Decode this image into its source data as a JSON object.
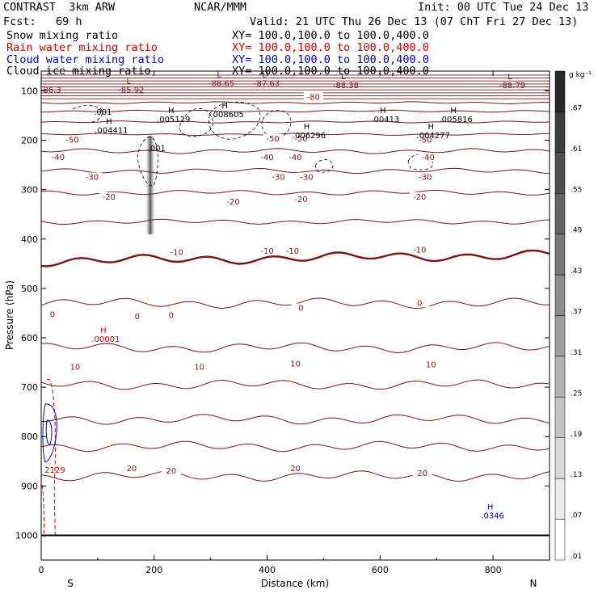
{
  "header": {
    "model": "CONTRAST  3km ARW",
    "org": "NCAR/MMM",
    "init": "Init: 00 UTC Tue 24 Dec 13",
    "fcst": "Fcst:   69 h",
    "valid": "Valid: 21 UTC Thu 26 Dec 13 (07 ChT Fri 27 Dec 13)"
  },
  "legend": [
    {
      "field": "Snow mixing ratio",
      "xy": "XY= 100.0,100.0 to 100.0,400.0",
      "color": "#000000"
    },
    {
      "field": "Rain water mixing ratio",
      "xy": "XY= 100.0,100.0 to 100.0,400.0",
      "color": "#d40000"
    },
    {
      "field": "Cloud water mixing ratio",
      "xy": "XY= 100.0,100.0 to 100.0,400.0",
      "color": "#0000c8"
    },
    {
      "field": "Cloud ice mixing ratio",
      "xy": "XY= 100.0,100.0 to 100.0,400.0",
      "color": "#000000"
    }
  ],
  "colors": {
    "isotherm": "#7a1414",
    "rain": "#d40000",
    "cloud": "#0000c8",
    "snow": "#000000"
  },
  "chart_data": {
    "type": "cross-section",
    "xlabel": "Distance (km)",
    "ylabel": "Pressure (hPa)",
    "xlim": [
      0,
      900
    ],
    "ylim": [
      1050,
      60
    ],
    "x_ticks": [
      0,
      200,
      400,
      600,
      800
    ],
    "y_ticks": [
      100,
      200,
      300,
      400,
      500,
      600,
      700,
      800,
      900,
      1000
    ],
    "end_left": "S",
    "end_right": "N",
    "colorbar": {
      "unit": "g kg⁻¹",
      "labels": [
        ".67",
        ".61",
        ".55",
        ".49",
        ".43",
        ".37",
        ".31",
        ".25",
        ".19",
        ".13",
        ".07",
        ".01"
      ]
    },
    "isotherms": [
      {
        "t": -80,
        "p": 124
      },
      {
        "t": -70,
        "p": 141
      },
      {
        "t": -60,
        "p": 163
      },
      {
        "t": -50,
        "p": 188
      },
      {
        "t": -40,
        "p": 222
      },
      {
        "t": -30,
        "p": 262
      },
      {
        "t": -20,
        "p": 306
      },
      {
        "t": -10,
        "p": 365
      },
      {
        "t": 0,
        "p": 445
      },
      {
        "t": 10,
        "p": 530
      },
      {
        "t": 20,
        "p": 620
      },
      {
        "t": 30,
        "p": 695
      },
      {
        "t": 40,
        "p": 765
      },
      {
        "t": 50,
        "p": 820
      },
      {
        "t": 60,
        "p": 880
      }
    ],
    "contour_labels": [
      {
        "text": "-80",
        "x": 482,
        "p": 118
      },
      {
        "text": "-50",
        "x": 55,
        "p": 205
      },
      {
        "text": "-50",
        "x": 410,
        "p": 202
      },
      {
        "text": "-50",
        "x": 460,
        "p": 202
      },
      {
        "text": "-50",
        "x": 680,
        "p": 205
      },
      {
        "text": "-40",
        "x": 30,
        "p": 240
      },
      {
        "text": "-40",
        "x": 400,
        "p": 240
      },
      {
        "text": "-40",
        "x": 450,
        "p": 240
      },
      {
        "text": "-40",
        "x": 685,
        "p": 240
      },
      {
        "text": "-30",
        "x": 90,
        "p": 280
      },
      {
        "text": "-30",
        "x": 420,
        "p": 280
      },
      {
        "text": "-30",
        "x": 470,
        "p": 280
      },
      {
        "text": "-30",
        "x": 680,
        "p": 280
      },
      {
        "text": "-20",
        "x": 120,
        "p": 320
      },
      {
        "text": "-20",
        "x": 340,
        "p": 330
      },
      {
        "text": "-20",
        "x": 460,
        "p": 325
      },
      {
        "text": "-20",
        "x": 670,
        "p": 320
      },
      {
        "text": "-10",
        "x": 240,
        "p": 432
      },
      {
        "text": "-10",
        "x": 400,
        "p": 430
      },
      {
        "text": "-10",
        "x": 445,
        "p": 430
      },
      {
        "text": "-10",
        "x": 670,
        "p": 427
      },
      {
        "text": "0",
        "x": 20,
        "p": 558
      },
      {
        "text": "0",
        "x": 170,
        "p": 562
      },
      {
        "text": "0",
        "x": 230,
        "p": 560
      },
      {
        "text": "0",
        "x": 460,
        "p": 545
      },
      {
        "text": "0",
        "x": 670,
        "p": 535
      },
      {
        "text": "10",
        "x": 60,
        "p": 665
      },
      {
        "text": "10",
        "x": 280,
        "p": 665
      },
      {
        "text": "10",
        "x": 450,
        "p": 658
      },
      {
        "text": "10",
        "x": 690,
        "p": 660
      },
      {
        "text": "20",
        "x": 160,
        "p": 870
      },
      {
        "text": "20",
        "x": 230,
        "p": 875
      },
      {
        "text": "20",
        "x": 450,
        "p": 870
      },
      {
        "text": "20",
        "x": 675,
        "p": 880
      }
    ],
    "extrema": [
      {
        "mark": "L",
        "value": "-85.92",
        "x": 155,
        "p": 103,
        "color": "#7a1414"
      },
      {
        "mark": "L",
        "value": "-88.65",
        "x": 315,
        "p": 90,
        "color": "#7a1414"
      },
      {
        "mark": "L",
        "value": "-87.63",
        "x": 395,
        "p": 90,
        "color": "#7a1414"
      },
      {
        "mark": "L",
        "value": "-88.38",
        "x": 535,
        "p": 94,
        "color": "#7a1414"
      },
      {
        "mark": "L",
        "value": "-88.79",
        "x": 830,
        "p": 94,
        "color": "#7a1414"
      },
      {
        "mark": "",
        "value": "86.3",
        "x": 15,
        "p": 103,
        "color": "#7a1414"
      },
      {
        "mark": "H",
        "value": ".004411",
        "x": 120,
        "p": 185,
        "color": "#000000"
      },
      {
        "mark": "H",
        "value": ".005129",
        "x": 230,
        "p": 163,
        "color": "#000000"
      },
      {
        "mark": "H",
        "value": ".008605",
        "x": 325,
        "p": 153,
        "color": "#000000"
      },
      {
        "mark": "H",
        "value": ".006296",
        "x": 470,
        "p": 196,
        "color": "#000000"
      },
      {
        "mark": "H",
        "value": ".00413",
        "x": 605,
        "p": 163,
        "color": "#000000"
      },
      {
        "mark": "H",
        "value": ".005816",
        "x": 730,
        "p": 163,
        "color": "#000000"
      },
      {
        "mark": "H",
        "value": ".004277",
        "x": 690,
        "p": 196,
        "color": "#000000"
      },
      {
        "mark": "",
        "value": ".001",
        "x": 105,
        "p": 148,
        "color": "#000000"
      },
      {
        "mark": "",
        "value": ".001",
        "x": 200,
        "p": 222,
        "color": "#000000"
      },
      {
        "mark": "H",
        "value": ".00001",
        "x": 110,
        "p": 608,
        "color": "#d40000"
      },
      {
        "mark": "",
        "value": "2129",
        "x": 20,
        "p": 873,
        "color": "#d40000"
      },
      {
        "mark": "H",
        "value": ".0346",
        "x": 795,
        "p": 966,
        "color": "#0000c8"
      }
    ]
  }
}
